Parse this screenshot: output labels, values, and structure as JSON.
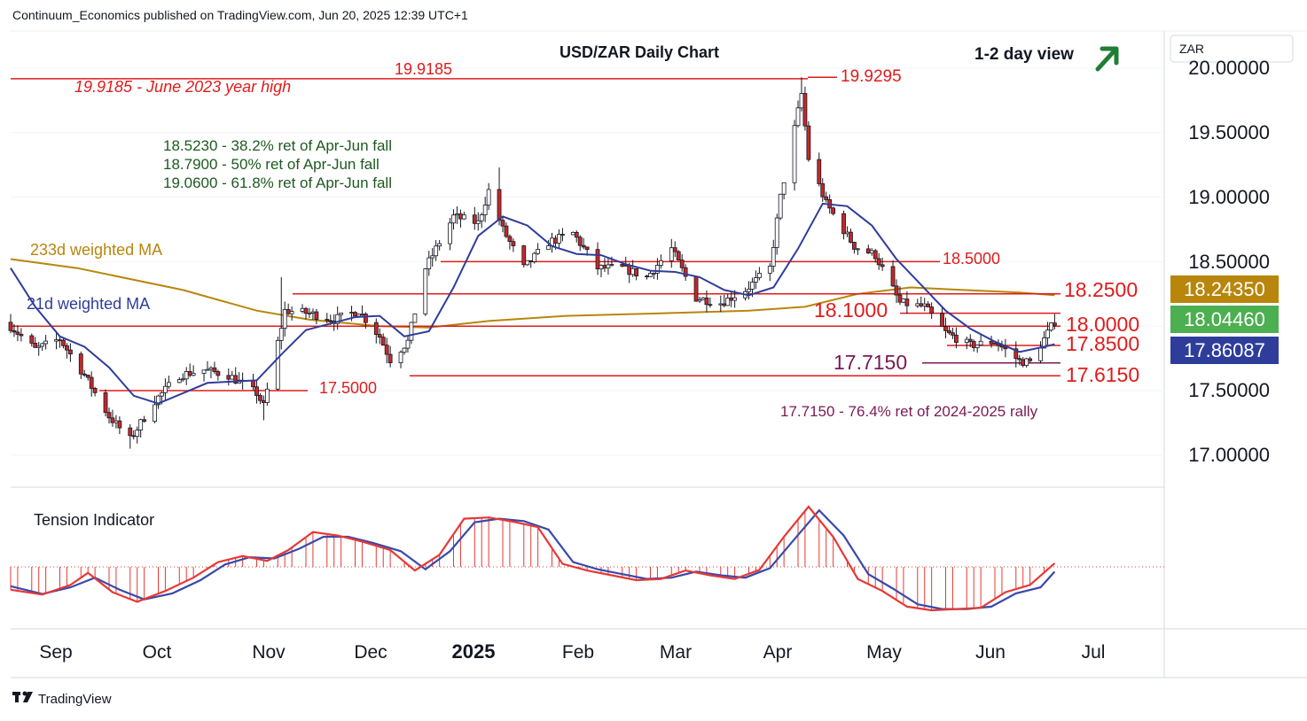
{
  "header": {
    "publisher_line": "Continuum_Economics published on TradingView.com, Jun 20, 2025 12:39 UTC+1"
  },
  "footer": {
    "brand": "TradingView"
  },
  "currency_tag": "ZAR",
  "colors": {
    "red": "#e01b1b",
    "green": "#1e5a20",
    "ma233": "#b8860b",
    "ma21": "#2f3d9a",
    "purple": "#7a1a55",
    "up_candle": "#ffffff",
    "down_candle": "#c62828",
    "tension_fast": "#e53935",
    "tension_slow": "#3949ab"
  },
  "chart_data": {
    "type": "candlestick",
    "title": "USD/ZAR Daily Chart",
    "view_label": "1-2 day view",
    "view_icon": "arrow-up-right-icon",
    "x_axis": {
      "labels": [
        "Sep",
        "Oct",
        "Nov",
        "Dec",
        "2025",
        "Feb",
        "Mar",
        "Apr",
        "May",
        "Jun",
        "Jul"
      ]
    },
    "y_axis": {
      "labels": [
        "20.00000",
        "19.50000",
        "19.00000",
        "18.50000",
        "17.50000",
        "17.00000"
      ],
      "range": [
        16.6,
        20.3
      ]
    },
    "price_tags": [
      {
        "value": "18.24350",
        "label": "233d weighted MA"
      },
      {
        "value": "18.04460",
        "label": "Last price"
      },
      {
        "value": "17.86087",
        "label": "21d weighted MA"
      }
    ],
    "levels": [
      {
        "value": 19.9295,
        "label": "19.9295"
      },
      {
        "value": 19.9185,
        "label": "19.9185"
      },
      {
        "value": 18.5,
        "label": "18.5000"
      },
      {
        "value": 18.25,
        "label": "18.2500"
      },
      {
        "value": 18.1,
        "label": "18.1000"
      },
      {
        "value": 18.0,
        "label": "18.0000"
      },
      {
        "value": 17.85,
        "label": "17.8500"
      },
      {
        "value": 17.715,
        "label": "17.7150"
      },
      {
        "value": 17.615,
        "label": "17.6150"
      },
      {
        "value": 17.5,
        "label": "17.5000"
      }
    ],
    "annotations": {
      "year_high": "19.9185 - June 2023 year high",
      "ret_382": "18.5230 - 38.2% ret of Apr-Jun fall",
      "ret_500": "18.7900 - 50% ret of Apr-Jun fall",
      "ret_618": "19.0600 - 61.8% ret of Apr-Jun fall",
      "ma233_label": "233d weighted MA",
      "ma21_label": "21d weighted MA",
      "ret_764": "17.7150 - 76.4% ret of 2024-2025 rally"
    },
    "anchors": [
      [
        "2024-08-27",
        18.0
      ],
      [
        "2024-09-03",
        17.82
      ],
      [
        "2024-09-10",
        17.9
      ],
      [
        "2024-09-17",
        17.62
      ],
      [
        "2024-09-24",
        17.3
      ],
      [
        "2024-09-30",
        17.12
      ],
      [
        "2024-10-07",
        17.42
      ],
      [
        "2024-10-14",
        17.62
      ],
      [
        "2024-10-21",
        17.66
      ],
      [
        "2024-10-28",
        17.62
      ],
      [
        "2024-11-05",
        17.48
      ],
      [
        "2024-11-07",
        17.38
      ],
      [
        "2024-11-13",
        18.12
      ],
      [
        "2024-11-20",
        18.1
      ],
      [
        "2024-11-27",
        18.05
      ],
      [
        "2024-12-04",
        18.12
      ],
      [
        "2024-12-10",
        17.92
      ],
      [
        "2024-12-13",
        17.74
      ],
      [
        "2024-12-18",
        17.88
      ],
      [
        "2024-12-23",
        18.45
      ],
      [
        "2024-12-31",
        18.85
      ],
      [
        "2025-01-07",
        18.8
      ],
      [
        "2025-01-10",
        19.05
      ],
      [
        "2025-01-14",
        18.75
      ],
      [
        "2025-01-20",
        18.45
      ],
      [
        "2025-01-27",
        18.65
      ],
      [
        "2025-02-03",
        18.72
      ],
      [
        "2025-02-10",
        18.45
      ],
      [
        "2025-02-17",
        18.45
      ],
      [
        "2025-02-24",
        18.38
      ],
      [
        "2025-03-03",
        18.6
      ],
      [
        "2025-03-10",
        18.22
      ],
      [
        "2025-03-17",
        18.18
      ],
      [
        "2025-03-24",
        18.28
      ],
      [
        "2025-03-31",
        18.45
      ],
      [
        "2025-04-03",
        19.0
      ],
      [
        "2025-04-09",
        19.8
      ],
      [
        "2025-04-11",
        19.3
      ],
      [
        "2025-04-16",
        18.95
      ],
      [
        "2025-04-24",
        18.62
      ],
      [
        "2025-04-30",
        18.55
      ],
      [
        "2025-05-07",
        18.18
      ],
      [
        "2025-05-14",
        18.15
      ],
      [
        "2025-05-20",
        17.95
      ],
      [
        "2025-05-27",
        17.85
      ],
      [
        "2025-06-03",
        17.88
      ],
      [
        "2025-06-10",
        17.73
      ],
      [
        "2025-06-13",
        17.72
      ],
      [
        "2025-06-17",
        17.9
      ],
      [
        "2025-06-20",
        18.04
      ]
    ],
    "extremes": [
      {
        "date": "2024-09-30",
        "low": 17.05
      },
      {
        "date": "2024-11-07",
        "low": 17.27
      },
      {
        "date": "2024-11-12",
        "high": 18.38
      },
      {
        "date": "2025-01-13",
        "high": 19.23
      },
      {
        "date": "2025-04-09",
        "high": 19.9295
      },
      {
        "date": "2025-06-11",
        "low": 17.68
      }
    ],
    "ma_21": [
      [
        "2024-08-27",
        18.45
      ],
      [
        "2024-09-03",
        18.15
      ],
      [
        "2024-09-10",
        17.92
      ],
      [
        "2024-09-17",
        17.84
      ],
      [
        "2024-09-24",
        17.68
      ],
      [
        "2024-10-01",
        17.46
      ],
      [
        "2024-10-08",
        17.4
      ],
      [
        "2024-10-15",
        17.48
      ],
      [
        "2024-10-22",
        17.56
      ],
      [
        "2024-10-29",
        17.57
      ],
      [
        "2024-11-05",
        17.58
      ],
      [
        "2024-11-12",
        17.78
      ],
      [
        "2024-11-19",
        17.97
      ],
      [
        "2024-11-26",
        18.02
      ],
      [
        "2024-12-03",
        18.07
      ],
      [
        "2024-12-10",
        18.08
      ],
      [
        "2024-12-17",
        17.92
      ],
      [
        "2024-12-24",
        17.96
      ],
      [
        "2024-12-31",
        18.3
      ],
      [
        "2025-01-07",
        18.7
      ],
      [
        "2025-01-14",
        18.85
      ],
      [
        "2025-01-21",
        18.78
      ],
      [
        "2025-01-28",
        18.62
      ],
      [
        "2025-02-04",
        18.56
      ],
      [
        "2025-02-11",
        18.55
      ],
      [
        "2025-02-18",
        18.48
      ],
      [
        "2025-02-25",
        18.43
      ],
      [
        "2025-03-04",
        18.42
      ],
      [
        "2025-03-11",
        18.38
      ],
      [
        "2025-03-18",
        18.28
      ],
      [
        "2025-03-25",
        18.24
      ],
      [
        "2025-04-01",
        18.3
      ],
      [
        "2025-04-08",
        18.6
      ],
      [
        "2025-04-15",
        18.95
      ],
      [
        "2025-04-22",
        18.93
      ],
      [
        "2025-04-29",
        18.78
      ],
      [
        "2025-05-06",
        18.52
      ],
      [
        "2025-05-13",
        18.32
      ],
      [
        "2025-05-20",
        18.12
      ],
      [
        "2025-05-27",
        17.98
      ],
      [
        "2025-06-03",
        17.88
      ],
      [
        "2025-06-10",
        17.8
      ],
      [
        "2025-06-17",
        17.84
      ],
      [
        "2025-06-20",
        17.86
      ]
    ],
    "ma_233": [
      [
        "2024-08-27",
        18.52
      ],
      [
        "2024-09-15",
        18.45
      ],
      [
        "2024-10-15",
        18.28
      ],
      [
        "2024-11-05",
        18.12
      ],
      [
        "2024-11-20",
        18.05
      ],
      [
        "2024-12-10",
        18.0
      ],
      [
        "2024-12-24",
        17.99
      ],
      [
        "2025-01-10",
        18.04
      ],
      [
        "2025-02-01",
        18.08
      ],
      [
        "2025-03-01",
        18.1
      ],
      [
        "2025-03-25",
        18.12
      ],
      [
        "2025-04-10",
        18.15
      ],
      [
        "2025-04-25",
        18.25
      ],
      [
        "2025-05-10",
        18.3
      ],
      [
        "2025-05-25",
        18.28
      ],
      [
        "2025-06-10",
        18.26
      ],
      [
        "2025-06-20",
        18.24
      ]
    ],
    "tension_indicator": {
      "label": "Tension Indicator",
      "fast": [
        [
          "2024-08-27",
          -0.38
        ],
        [
          "2024-09-05",
          -0.46
        ],
        [
          "2024-09-13",
          -0.3
        ],
        [
          "2024-09-18",
          -0.1
        ],
        [
          "2024-09-25",
          -0.42
        ],
        [
          "2024-10-02",
          -0.58
        ],
        [
          "2024-10-10",
          -0.4
        ],
        [
          "2024-10-18",
          -0.18
        ],
        [
          "2024-10-25",
          0.08
        ],
        [
          "2024-11-01",
          0.18
        ],
        [
          "2024-11-08",
          0.1
        ],
        [
          "2024-11-14",
          0.28
        ],
        [
          "2024-11-21",
          0.58
        ],
        [
          "2024-11-28",
          0.52
        ],
        [
          "2024-12-05",
          0.42
        ],
        [
          "2024-12-13",
          0.28
        ],
        [
          "2024-12-20",
          -0.06
        ],
        [
          "2024-12-27",
          0.2
        ],
        [
          "2025-01-03",
          0.8
        ],
        [
          "2025-01-10",
          0.82
        ],
        [
          "2025-01-17",
          0.75
        ],
        [
          "2025-01-24",
          0.66
        ],
        [
          "2025-01-31",
          0.05
        ],
        [
          "2025-02-07",
          -0.06
        ],
        [
          "2025-02-14",
          -0.14
        ],
        [
          "2025-02-21",
          -0.22
        ],
        [
          "2025-02-28",
          -0.2
        ],
        [
          "2025-03-07",
          -0.06
        ],
        [
          "2025-03-14",
          -0.14
        ],
        [
          "2025-03-21",
          -0.2
        ],
        [
          "2025-03-28",
          -0.05
        ],
        [
          "2025-04-04",
          0.5
        ],
        [
          "2025-04-11",
          1.0
        ],
        [
          "2025-04-18",
          0.5
        ],
        [
          "2025-04-25",
          -0.2
        ],
        [
          "2025-05-02",
          -0.4
        ],
        [
          "2025-05-09",
          -0.66
        ],
        [
          "2025-05-16",
          -0.72
        ],
        [
          "2025-05-23",
          -0.7
        ],
        [
          "2025-05-30",
          -0.68
        ],
        [
          "2025-06-06",
          -0.42
        ],
        [
          "2025-06-13",
          -0.3
        ],
        [
          "2025-06-20",
          0.06
        ]
      ],
      "slow": [
        [
          "2024-08-27",
          -0.32
        ],
        [
          "2024-09-05",
          -0.45
        ],
        [
          "2024-09-13",
          -0.34
        ],
        [
          "2024-09-20",
          -0.18
        ],
        [
          "2024-09-27",
          -0.38
        ],
        [
          "2024-10-04",
          -0.54
        ],
        [
          "2024-10-12",
          -0.44
        ],
        [
          "2024-10-20",
          -0.22
        ],
        [
          "2024-10-27",
          0.04
        ],
        [
          "2024-11-03",
          0.16
        ],
        [
          "2024-11-10",
          0.14
        ],
        [
          "2024-11-17",
          0.3
        ],
        [
          "2024-11-24",
          0.5
        ],
        [
          "2024-12-01",
          0.5
        ],
        [
          "2024-12-08",
          0.4
        ],
        [
          "2024-12-16",
          0.26
        ],
        [
          "2024-12-23",
          -0.04
        ],
        [
          "2024-12-30",
          0.26
        ],
        [
          "2025-01-06",
          0.74
        ],
        [
          "2025-01-13",
          0.8
        ],
        [
          "2025-01-20",
          0.76
        ],
        [
          "2025-01-27",
          0.62
        ],
        [
          "2025-02-03",
          0.08
        ],
        [
          "2025-02-10",
          -0.04
        ],
        [
          "2025-02-17",
          -0.12
        ],
        [
          "2025-02-24",
          -0.2
        ],
        [
          "2025-03-03",
          -0.18
        ],
        [
          "2025-03-10",
          -0.08
        ],
        [
          "2025-03-17",
          -0.14
        ],
        [
          "2025-03-24",
          -0.18
        ],
        [
          "2025-03-31",
          -0.02
        ],
        [
          "2025-04-07",
          0.46
        ],
        [
          "2025-04-14",
          0.94
        ],
        [
          "2025-04-21",
          0.52
        ],
        [
          "2025-04-28",
          -0.12
        ],
        [
          "2025-05-05",
          -0.36
        ],
        [
          "2025-05-12",
          -0.62
        ],
        [
          "2025-05-19",
          -0.7
        ],
        [
          "2025-05-26",
          -0.7
        ],
        [
          "2025-06-02",
          -0.66
        ],
        [
          "2025-06-09",
          -0.44
        ],
        [
          "2025-06-16",
          -0.34
        ],
        [
          "2025-06-20",
          -0.08
        ]
      ]
    }
  }
}
